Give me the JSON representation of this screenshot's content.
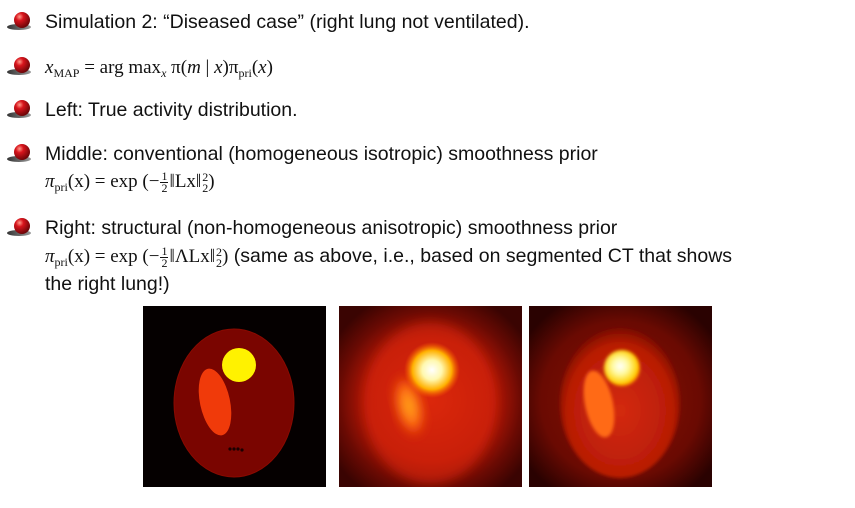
{
  "bullet_icon": "red-sphere-bullet-icon",
  "bullet_color": "#c0161c",
  "items": [
    {
      "text": "Simulation 2: “Diseased case” (right lung not ventilated)."
    },
    {
      "math": {
        "x": "x",
        "map": "MAP",
        "eq": " = arg max",
        "x2": "x",
        "pi": "π(",
        "m": "m",
        "mid": " | ",
        "x3": "x",
        "close": ")π",
        "pri": "pri",
        "open2": "(",
        "x4": "x",
        "close2": ")"
      }
    },
    {
      "text": "Left: True activity distribution."
    },
    {
      "text": "Middle: conventional (homogeneous isotropic) smoothness prior",
      "math": {
        "pi": "π",
        "pri": "pri",
        "arg": "(x) = exp (−",
        "num": "1",
        "den": "2",
        "norm": "‖Lx‖",
        "sup": "2",
        "sub": "2",
        "close": ")"
      }
    },
    {
      "text": "Right: structural (non-homogeneous anisotropic) smoothness prior",
      "math": {
        "pi": "π",
        "pri": "pri",
        "arg": "(x) = exp (−",
        "num": "1",
        "den": "2",
        "norm": "‖ΛLx‖",
        "sup": "2",
        "sub": "2",
        "close": ")"
      },
      "after_math": "(same as above, i.e., based on segmented CT that shows",
      "line3": "the right lung!)"
    }
  ],
  "figures": [
    {
      "name": "true-activity-image"
    },
    {
      "name": "conventional-prior-reconstruction"
    },
    {
      "name": "structural-prior-reconstruction"
    }
  ]
}
